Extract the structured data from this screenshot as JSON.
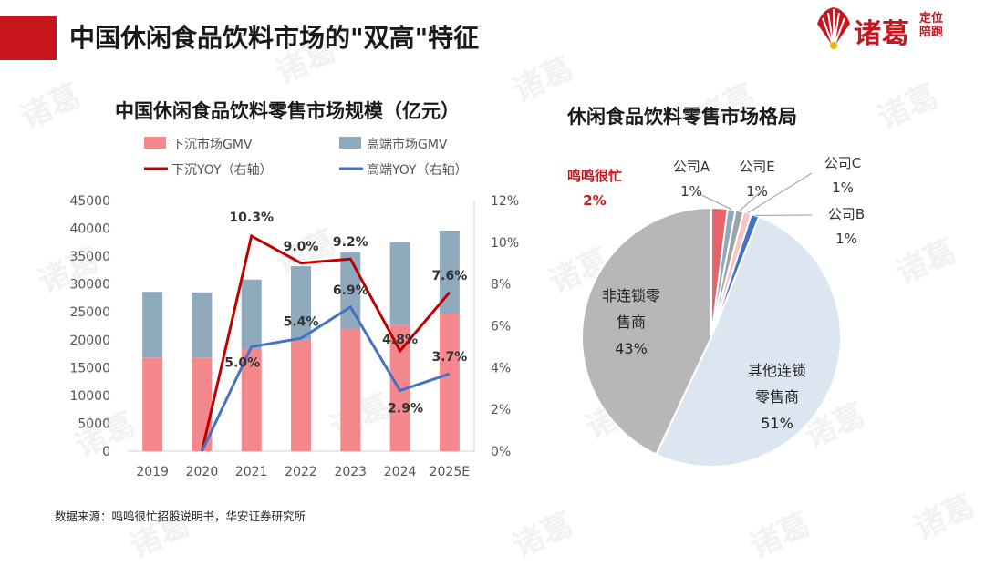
{
  "header": {
    "title": "中国休闲食品饮料市场的\"双高\"特征",
    "logo_text": "诸葛",
    "logo_sub": "定位 陪跑",
    "accent_color": "#c8161d"
  },
  "watermark_text": "诸葛",
  "source": "数据来源：鸣鸣很忙招股说明书，华安证券研究所",
  "chart_data": [
    {
      "type": "bar",
      "title": "中国休闲食品饮料零售市场规模（亿元）",
      "categories": [
        "2019",
        "2020",
        "2021",
        "2022",
        "2023",
        "2024",
        "2025E"
      ],
      "stacked": true,
      "series": [
        {
          "name": "下沉市场GMV",
          "type": "bar",
          "axis": "left",
          "color": "#f4888c",
          "values": [
            16800,
            16800,
            18400,
            20000,
            22000,
            22700,
            24700
          ]
        },
        {
          "name": "高端市场GMV",
          "type": "bar",
          "axis": "left",
          "color": "#8fa9bd",
          "values": [
            11800,
            11700,
            12400,
            13200,
            13700,
            14800,
            14900
          ]
        },
        {
          "name": "下沉YOY（右轴）",
          "type": "line",
          "axis": "right",
          "color": "#c00000",
          "values": [
            null,
            0,
            10.3,
            9.0,
            9.2,
            4.8,
            7.6
          ],
          "labels": [
            "",
            "",
            "10.3%",
            "9.0%",
            "9.2%",
            "4.8%",
            "7.6%"
          ]
        },
        {
          "name": "高端YOY（右轴）",
          "type": "line",
          "axis": "right",
          "color": "#4472c4",
          "values": [
            null,
            0,
            5.0,
            5.4,
            6.9,
            2.9,
            3.7
          ],
          "labels": [
            "",
            "",
            "5.0%",
            "5.4%",
            "6.9%",
            "2.9%",
            "3.7%"
          ]
        }
      ],
      "ylim": [
        0,
        45000
      ],
      "yticks": [
        "0",
        "5000",
        "10000",
        "15000",
        "20000",
        "25000",
        "30000",
        "35000",
        "40000",
        "45000"
      ],
      "y2lim": [
        0,
        12
      ],
      "y2ticks": [
        "0%",
        "2%",
        "4%",
        "6%",
        "8%",
        "10%",
        "12%"
      ],
      "legend": "top"
    },
    {
      "type": "pie",
      "title": "休闲食品饮料零售市场格局",
      "slices": [
        {
          "label": "鸣鸣很忙",
          "value": 2,
          "pct": "2%",
          "color": "#e8636a",
          "highlight": true
        },
        {
          "label": "公司A",
          "value": 1,
          "pct": "1%",
          "color": "#8fa9bd"
        },
        {
          "label": "公司E",
          "value": 1,
          "pct": "1%",
          "color": "#9ea3a8"
        },
        {
          "label": "公司C",
          "value": 1,
          "pct": "1%",
          "color": "#f7c3c6"
        },
        {
          "label": "公司B",
          "value": 1,
          "pct": "1%",
          "color": "#4472c4"
        },
        {
          "label": "其他连锁零售商",
          "value": 51,
          "pct": "51%",
          "color": "#dce6f1",
          "lines": [
            "其他连锁",
            "零售商"
          ]
        },
        {
          "label": "非连锁零售商",
          "value": 43,
          "pct": "43%",
          "color": "#b7b7b7",
          "lines": [
            "非连锁零",
            "售商"
          ]
        }
      ]
    }
  ]
}
